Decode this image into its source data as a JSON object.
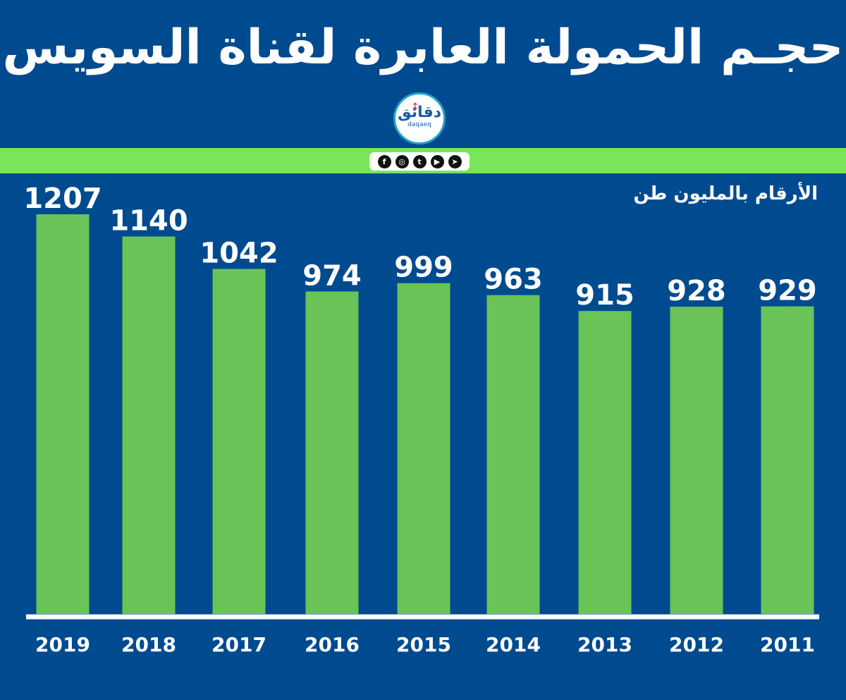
{
  "header": {
    "title": "حجـم الحمولة العابرة لقناة السويس"
  },
  "logo": {
    "arabic": "دقائق",
    "latin": "daqaeq"
  },
  "social": [
    {
      "icon": "facebook-icon",
      "glyph": "f"
    },
    {
      "icon": "instagram-icon",
      "glyph": "◎"
    },
    {
      "icon": "twitter-icon",
      "glyph": "t"
    },
    {
      "icon": "youtube-icon",
      "glyph": "▶"
    },
    {
      "icon": "telegram-icon",
      "glyph": "➤"
    }
  ],
  "colors": {
    "background": "#004a8f",
    "bar": "#6ac356",
    "band": "#79e65a"
  },
  "chart_data": {
    "type": "bar",
    "title": "حجـم الحمولة العابرة لقناة السويس",
    "unit_label": "الأرقام بالمليون طن",
    "categories": [
      "2019",
      "2018",
      "2017",
      "2016",
      "2015",
      "2014",
      "2013",
      "2012",
      "2011"
    ],
    "values": [
      1207,
      1140,
      1042,
      974,
      999,
      963,
      915,
      928,
      929
    ],
    "ylim": [
      0,
      1207
    ],
    "xlabel": "",
    "ylabel": ""
  }
}
